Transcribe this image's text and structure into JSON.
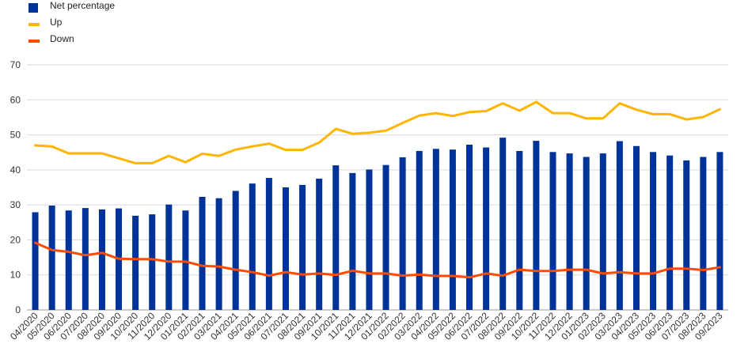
{
  "chart_data": {
    "type": "bar",
    "title": "",
    "xlabel": "",
    "ylabel": "",
    "ylim": [
      0,
      70
    ],
    "yticks": [
      0,
      10,
      20,
      30,
      40,
      50,
      60,
      70
    ],
    "grid": "horizontal",
    "legend_position": "top-left",
    "categories": [
      "04/2020",
      "05/2020",
      "06/2020",
      "07/2020",
      "08/2020",
      "09/2020",
      "10/2020",
      "11/2020",
      "12/2020",
      "01/2021",
      "02/2021",
      "03/2021",
      "04/2021",
      "05/2021",
      "06/2021",
      "07/2021",
      "08/2021",
      "09/2021",
      "10/2021",
      "11/2021",
      "12/2021",
      "01/2022",
      "02/2022",
      "03/2022",
      "04/2022",
      "05/2022",
      "06/2022",
      "07/2022",
      "08/2022",
      "09/2022",
      "10/2022",
      "11/2022",
      "12/2022",
      "01/2023",
      "02/2023",
      "03/2023",
      "04/2023",
      "05/2023",
      "06/2023",
      "07/2023",
      "08/2023",
      "09/2023"
    ],
    "series": [
      {
        "name": "Net percentage",
        "kind": "bar",
        "color": "#003399",
        "values": [
          27.9,
          29.8,
          28.4,
          29.1,
          28.7,
          29.0,
          26.9,
          27.3,
          30.1,
          28.4,
          32.3,
          31.9,
          34.0,
          36.1,
          37.7,
          35.0,
          35.7,
          37.5,
          41.3,
          39.1,
          40.1,
          41.4,
          43.6,
          45.4,
          46.0,
          45.8,
          47.2,
          46.4,
          49.2,
          45.4,
          48.3,
          45.1,
          44.7,
          43.7,
          44.7,
          48.2,
          46.8,
          45.1,
          44.1,
          42.7,
          43.7,
          45.1
        ]
      },
      {
        "name": "Up",
        "kind": "line",
        "color": "#FFB400",
        "values": [
          47.0,
          46.7,
          44.7,
          44.7,
          44.7,
          43.3,
          41.9,
          41.9,
          44.0,
          42.2,
          44.6,
          44.0,
          45.8,
          46.7,
          47.5,
          45.7,
          45.7,
          47.8,
          51.7,
          50.3,
          50.6,
          51.2,
          53.4,
          55.5,
          56.2,
          55.4,
          56.5,
          56.8,
          59.0,
          56.9,
          59.4,
          56.2,
          56.2,
          54.7,
          54.7,
          59.0,
          57.2,
          55.9,
          55.9,
          54.4,
          55.1,
          57.3
        ]
      },
      {
        "name": "Down",
        "kind": "line",
        "color": "#FF4B00",
        "values": [
          19.2,
          17.1,
          16.6,
          15.6,
          16.3,
          14.6,
          14.5,
          14.5,
          13.8,
          13.8,
          12.6,
          12.4,
          11.5,
          10.8,
          9.8,
          10.8,
          10.1,
          10.4,
          10.0,
          11.2,
          10.4,
          10.4,
          9.8,
          10.1,
          9.7,
          9.7,
          9.3,
          10.4,
          9.8,
          11.5,
          11.1,
          11.1,
          11.5,
          11.5,
          10.4,
          10.8,
          10.4,
          10.4,
          11.8,
          11.8,
          11.4,
          12.2
        ]
      }
    ]
  }
}
